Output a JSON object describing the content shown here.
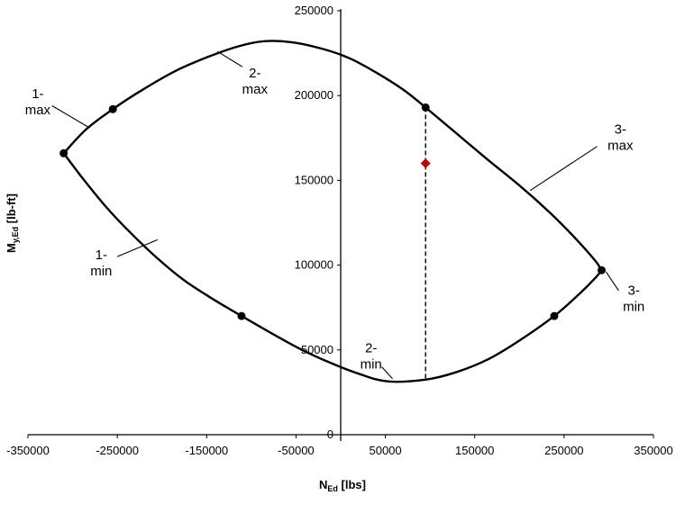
{
  "chart_data": {
    "type": "line",
    "title": "",
    "x_axis": {
      "label_main": "N",
      "label_sub": "Ed",
      "label_unit": " [lbs]",
      "min": -350000,
      "max": 350000,
      "ticks": [
        -350000,
        -250000,
        -150000,
        -50000,
        50000,
        150000,
        250000,
        350000
      ]
    },
    "y_axis": {
      "label_main": "M",
      "label_sub": "y,Ed",
      "label_unit": " [lb-ft]",
      "min": 0,
      "max": 250000,
      "ticks": [
        0,
        50000,
        100000,
        150000,
        200000,
        250000
      ]
    },
    "series": [
      {
        "name": "interaction-envelope-upper",
        "color": "#000000",
        "points": [
          [
            -310000,
            166000
          ],
          [
            -285000,
            180000
          ],
          [
            -255000,
            192000
          ],
          [
            -220000,
            204000
          ],
          [
            -185000,
            214500
          ],
          [
            -150000,
            222500
          ],
          [
            -115000,
            229000
          ],
          [
            -87000,
            232000
          ],
          [
            -55000,
            231500
          ],
          [
            -20000,
            227500
          ],
          [
            10000,
            222000
          ],
          [
            40000,
            213500
          ],
          [
            70000,
            203500
          ],
          [
            95000,
            193000
          ],
          [
            130000,
            177500
          ],
          [
            165000,
            162000
          ],
          [
            200000,
            147000
          ],
          [
            235000,
            130500
          ],
          [
            265000,
            114500
          ],
          [
            285000,
            102500
          ],
          [
            292000,
            97000
          ]
        ]
      },
      {
        "name": "interaction-envelope-lower",
        "color": "#000000",
        "points": [
          [
            -310000,
            166000
          ],
          [
            -287000,
            150000
          ],
          [
            -262000,
            134000
          ],
          [
            -235000,
            119000
          ],
          [
            -205000,
            104000
          ],
          [
            -175000,
            91000
          ],
          [
            -143000,
            80000
          ],
          [
            -111000,
            70000
          ],
          [
            -78000,
            60000
          ],
          [
            -45000,
            50500
          ],
          [
            -12000,
            42500
          ],
          [
            20000,
            36000
          ],
          [
            52000,
            31500
          ],
          [
            95000,
            32500
          ],
          [
            130000,
            37000
          ],
          [
            165000,
            44500
          ],
          [
            200000,
            55500
          ],
          [
            239000,
            70000
          ],
          [
            268000,
            83500
          ],
          [
            285000,
            92500
          ],
          [
            292000,
            97000
          ]
        ]
      }
    ],
    "key_points": [
      {
        "name": "left-vertex",
        "x": -310000,
        "y": 166000
      },
      {
        "name": "point-1-max",
        "x": -255000,
        "y": 192000
      },
      {
        "name": "point-2-top",
        "x": 95000,
        "y": 193000
      },
      {
        "name": "right-vertex",
        "x": 292000,
        "y": 97000
      },
      {
        "name": "point-3-min",
        "x": 239000,
        "y": 70000
      },
      {
        "name": "point-1-low",
        "x": -111000,
        "y": 70000
      }
    ],
    "design_point": {
      "x": 95000,
      "y": 160000,
      "color": "#c00000"
    },
    "dashed_line": {
      "x": 95000,
      "y_top": 193000,
      "y_bottom": 32500
    },
    "annotations": [
      {
        "line1": "1-",
        "line2": "max",
        "x": -339000,
        "y": 197000,
        "leader": {
          "x1": -323000,
          "y1": 194000,
          "x2": -281000,
          "y2": 181000
        }
      },
      {
        "line1": "2-",
        "line2": "max",
        "x": -96000,
        "y": 209000,
        "leader": {
          "x1": -110000,
          "y1": 217000,
          "x2": -138000,
          "y2": 226000
        }
      },
      {
        "line1": "3-",
        "line2": "max",
        "x": 313000,
        "y": 176000,
        "leader": {
          "x1": 287000,
          "y1": 170000,
          "x2": 212000,
          "y2": 144000
        }
      },
      {
        "line1": "1-",
        "line2": "min",
        "x": -268000,
        "y": 102000,
        "leader": {
          "x1": -250000,
          "y1": 105000,
          "x2": -205000,
          "y2": 115000
        }
      },
      {
        "line1": "2-",
        "line2": "min",
        "x": 34000,
        "y": 47000,
        "leader": {
          "x1": 46000,
          "y1": 40000,
          "x2": 58000,
          "y2": 33000
        }
      },
      {
        "line1": "3-",
        "line2": "min",
        "x": 328000,
        "y": 81000,
        "leader": {
          "x1": 311000,
          "y1": 85000,
          "x2": 297000,
          "y2": 96000
        }
      }
    ]
  }
}
